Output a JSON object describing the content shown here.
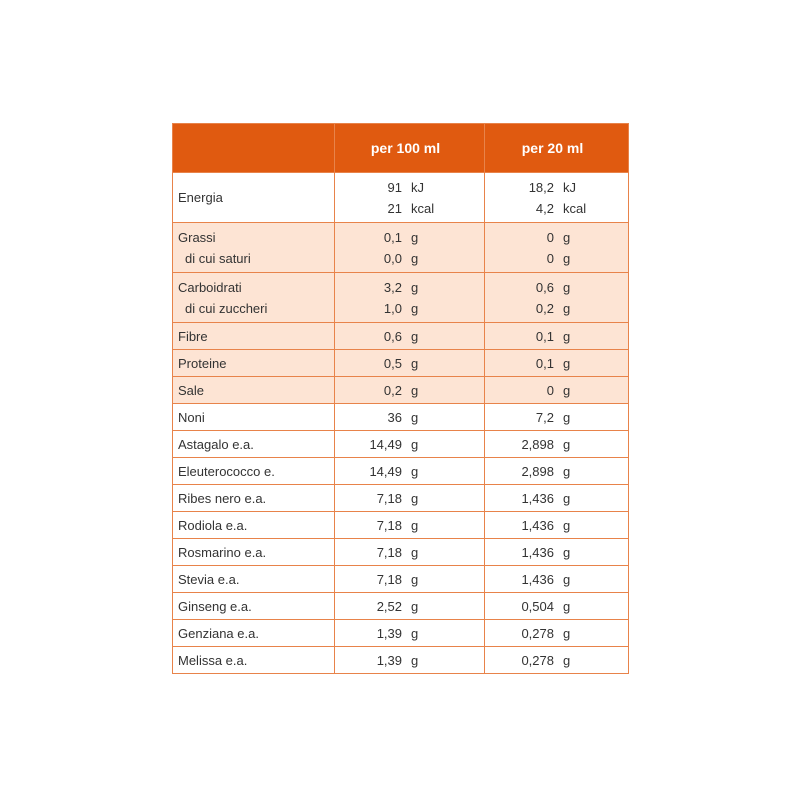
{
  "header": {
    "columns": [
      "per 100 ml",
      "per 20 ml"
    ]
  },
  "rows": [
    {
      "labels": [
        "Energia"
      ],
      "a": [
        [
          "91",
          "kJ"
        ],
        [
          "21",
          "kcal"
        ]
      ],
      "b": [
        [
          "18,2",
          "kJ"
        ],
        [
          "4,2",
          "kcal"
        ]
      ],
      "shaded": false
    },
    {
      "labels": [
        "Grassi",
        "di cui saturi"
      ],
      "a": [
        [
          "0,1",
          "g"
        ],
        [
          "0,0",
          "g"
        ]
      ],
      "b": [
        [
          "0",
          "g"
        ],
        [
          "0",
          "g"
        ]
      ],
      "shaded": true
    },
    {
      "labels": [
        "Carboidrati",
        "di cui zuccheri"
      ],
      "a": [
        [
          "3,2",
          "g"
        ],
        [
          "1,0",
          "g"
        ]
      ],
      "b": [
        [
          "0,6",
          "g"
        ],
        [
          "0,2",
          "g"
        ]
      ],
      "shaded": true
    },
    {
      "labels": [
        "Fibre"
      ],
      "a": [
        [
          "0,6",
          "g"
        ]
      ],
      "b": [
        [
          "0,1",
          "g"
        ]
      ],
      "shaded": true
    },
    {
      "labels": [
        "Proteine"
      ],
      "a": [
        [
          "0,5",
          "g"
        ]
      ],
      "b": [
        [
          "0,1",
          "g"
        ]
      ],
      "shaded": true
    },
    {
      "labels": [
        "Sale"
      ],
      "a": [
        [
          "0,2",
          "g"
        ]
      ],
      "b": [
        [
          "0",
          "g"
        ]
      ],
      "shaded": true
    },
    {
      "labels": [
        "Noni"
      ],
      "a": [
        [
          "36",
          "g"
        ]
      ],
      "b": [
        [
          "7,2",
          "g"
        ]
      ],
      "shaded": false
    },
    {
      "labels": [
        "Astagalo e.a."
      ],
      "a": [
        [
          "14,49",
          "g"
        ]
      ],
      "b": [
        [
          "2,898",
          "g"
        ]
      ],
      "shaded": false
    },
    {
      "labels": [
        "Eleuterococco e."
      ],
      "a": [
        [
          "14,49",
          "g"
        ]
      ],
      "b": [
        [
          "2,898",
          "g"
        ]
      ],
      "shaded": false
    },
    {
      "labels": [
        "Ribes nero e.a."
      ],
      "a": [
        [
          "7,18",
          "g"
        ]
      ],
      "b": [
        [
          "1,436",
          "g"
        ]
      ],
      "shaded": false
    },
    {
      "labels": [
        "Rodiola e.a."
      ],
      "a": [
        [
          "7,18",
          "g"
        ]
      ],
      "b": [
        [
          "1,436",
          "g"
        ]
      ],
      "shaded": false
    },
    {
      "labels": [
        "Rosmarino e.a."
      ],
      "a": [
        [
          "7,18",
          "g"
        ]
      ],
      "b": [
        [
          "1,436",
          "g"
        ]
      ],
      "shaded": false
    },
    {
      "labels": [
        "Stevia e.a."
      ],
      "a": [
        [
          "7,18",
          "g"
        ]
      ],
      "b": [
        [
          "1,436",
          "g"
        ]
      ],
      "shaded": false
    },
    {
      "labels": [
        "Ginseng e.a."
      ],
      "a": [
        [
          "2,52",
          "g"
        ]
      ],
      "b": [
        [
          "0,504",
          "g"
        ]
      ],
      "shaded": false
    },
    {
      "labels": [
        "Genziana e.a."
      ],
      "a": [
        [
          "1,39",
          "g"
        ]
      ],
      "b": [
        [
          "0,278",
          "g"
        ]
      ],
      "shaded": false
    },
    {
      "labels": [
        "Melissa e.a."
      ],
      "a": [
        [
          "1,39",
          "g"
        ]
      ],
      "b": [
        [
          "0,278",
          "g"
        ]
      ],
      "shaded": false
    }
  ]
}
